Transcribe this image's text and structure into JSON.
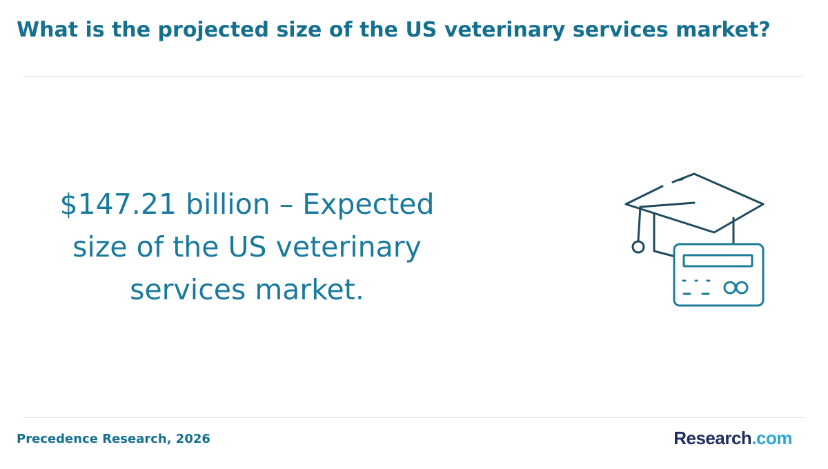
{
  "header": {
    "title": "What is the projected size of the US veterinary services market?"
  },
  "main": {
    "statement": "$147.21 billion – Expected size of the US veterinary services market.",
    "illustration_icon": "graduation-cap-with-card-icon"
  },
  "footer": {
    "source": "Precedence Research, 2026",
    "logo_part1": "Research",
    "logo_part2": ".com"
  },
  "colors": {
    "title": "#15708f",
    "statement": "#1a7a9c",
    "icon_dark": "#1f4a5e",
    "icon_accent": "#1d7d99",
    "logo_dark": "#1f2e5a",
    "logo_accent": "#2aa7d6"
  }
}
